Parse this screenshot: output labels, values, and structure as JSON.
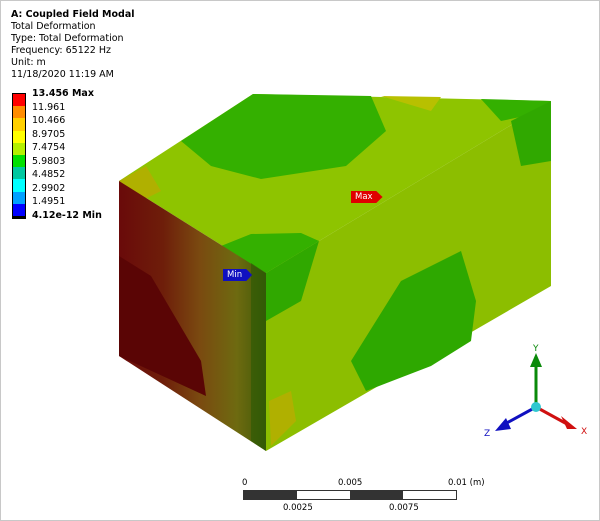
{
  "header": {
    "title": "A: Coupled Field Modal",
    "lines": [
      "Total Deformation",
      "Type: Total Deformation",
      "Frequency: 65122 Hz",
      "Unit: m",
      "11/18/2020 11:19 AM"
    ]
  },
  "legend": {
    "labels": [
      "13.456 Max",
      "11.961",
      "10.466",
      "8.9705",
      "7.4754",
      "5.9803",
      "4.4852",
      "2.9902",
      "1.4951",
      "4.12e-12 Min"
    ],
    "colors": [
      "#ff0000",
      "#ff8c00",
      "#ffd000",
      "#ffff00",
      "#b4f000",
      "#00e000",
      "#00c8a0",
      "#00ffff",
      "#00a0ff",
      "#0000ff"
    ]
  },
  "probes": {
    "max_label": "Max",
    "min_label": "Min",
    "max_color": "#e00000",
    "min_color": "#1010c0"
  },
  "triad": {
    "x": "X",
    "y": "Y",
    "z": "Z"
  },
  "scale_bar": {
    "top_labels": [
      "0",
      "0.005",
      "0.01 (m)"
    ],
    "bottom_labels": [
      "0.0025",
      "0.0075"
    ]
  }
}
